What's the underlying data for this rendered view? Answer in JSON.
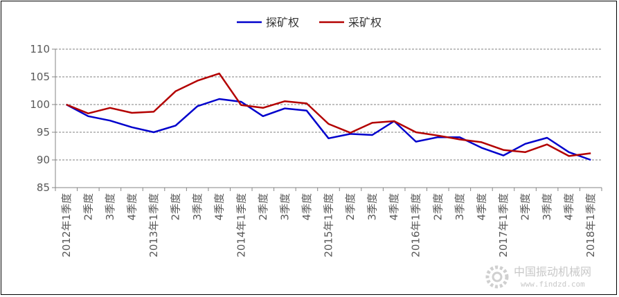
{
  "chart_data": {
    "type": "line",
    "title": "",
    "xlabel": "",
    "ylabel": "",
    "ylim": [
      85,
      110
    ],
    "yticks": [
      "85",
      "90",
      "95",
      "100",
      "105",
      "110"
    ],
    "grid": true,
    "legend_position": "top-center",
    "categories": [
      "2012年1季度",
      "2季度",
      "3季度",
      "4季度",
      "2013年1季度",
      "2季度",
      "3季度",
      "4季度",
      "2014年1季度",
      "2季度",
      "3季度",
      "4季度",
      "2015年1季度",
      "2季度",
      "3季度",
      "4季度",
      "2016年1季度",
      "2季度",
      "3季度",
      "4季度",
      "2017年1季度",
      "2季度",
      "3季度",
      "4季度",
      "2018年1季度"
    ],
    "series": [
      {
        "name": "探矿权",
        "color": "#0000CC",
        "values": [
          100,
          97.9,
          97.1,
          95.9,
          95.0,
          96.2,
          99.7,
          101.0,
          100.5,
          97.9,
          99.3,
          98.9,
          93.9,
          94.7,
          94.5,
          97.0,
          93.3,
          94.1,
          94.1,
          92.2,
          90.8,
          92.9,
          94.0,
          91.4,
          90.0
        ]
      },
      {
        "name": "采矿权",
        "color": "#B30000",
        "values": [
          100,
          98.4,
          99.4,
          98.5,
          98.7,
          102.4,
          104.3,
          105.6,
          99.9,
          99.4,
          100.6,
          100.2,
          96.5,
          94.9,
          96.7,
          97.0,
          95.0,
          94.4,
          93.7,
          93.2,
          91.8,
          91.4,
          92.8,
          90.7,
          91.2
        ]
      }
    ]
  },
  "watermark": {
    "text": "中国振动机械网",
    "url": "www.findzd.com"
  }
}
